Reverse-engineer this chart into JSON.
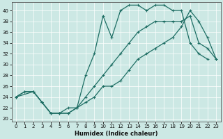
{
  "xlabel": "Humidex (Indice chaleur)",
  "xlim": [
    -0.5,
    23.5
  ],
  "ylim": [
    19.5,
    41.5
  ],
  "xticks": [
    0,
    1,
    2,
    3,
    4,
    5,
    6,
    7,
    8,
    9,
    10,
    11,
    12,
    13,
    14,
    15,
    16,
    17,
    18,
    19,
    20,
    21,
    22,
    23
  ],
  "yticks": [
    20,
    22,
    24,
    26,
    28,
    30,
    32,
    34,
    36,
    38,
    40
  ],
  "bg_color": "#cce8e4",
  "line_color": "#1e6e64",
  "line1_x": [
    0,
    1,
    2,
    3,
    4,
    5,
    6,
    7,
    8,
    9,
    10,
    11,
    12,
    13,
    14,
    15,
    16,
    17,
    18,
    19,
    20,
    21,
    22
  ],
  "line1_y": [
    24,
    25,
    25,
    23,
    21,
    21,
    21,
    22,
    28,
    32,
    39,
    35,
    40,
    41,
    41,
    40,
    41,
    41,
    40,
    40,
    34,
    32,
    31
  ],
  "line2_x": [
    0,
    2,
    3,
    4,
    5,
    6,
    7,
    8,
    9,
    10,
    11,
    12,
    13,
    14,
    15,
    16,
    17,
    18,
    19,
    20,
    21,
    22,
    23
  ],
  "line2_y": [
    24,
    25,
    23,
    21,
    21,
    22,
    22,
    24,
    26,
    28,
    30,
    32,
    34,
    36,
    37,
    38,
    38,
    38,
    38,
    39,
    34,
    33,
    31
  ],
  "line3_x": [
    0,
    1,
    2,
    3,
    4,
    5,
    6,
    7,
    8,
    9,
    10,
    11,
    12,
    13,
    14,
    15,
    16,
    17,
    18,
    19,
    20,
    21,
    22,
    23
  ],
  "line3_y": [
    24,
    25,
    25,
    23,
    21,
    21,
    21,
    22,
    23,
    24,
    26,
    26,
    27,
    29,
    31,
    32,
    33,
    34,
    35,
    37,
    40,
    38,
    35,
    31
  ]
}
